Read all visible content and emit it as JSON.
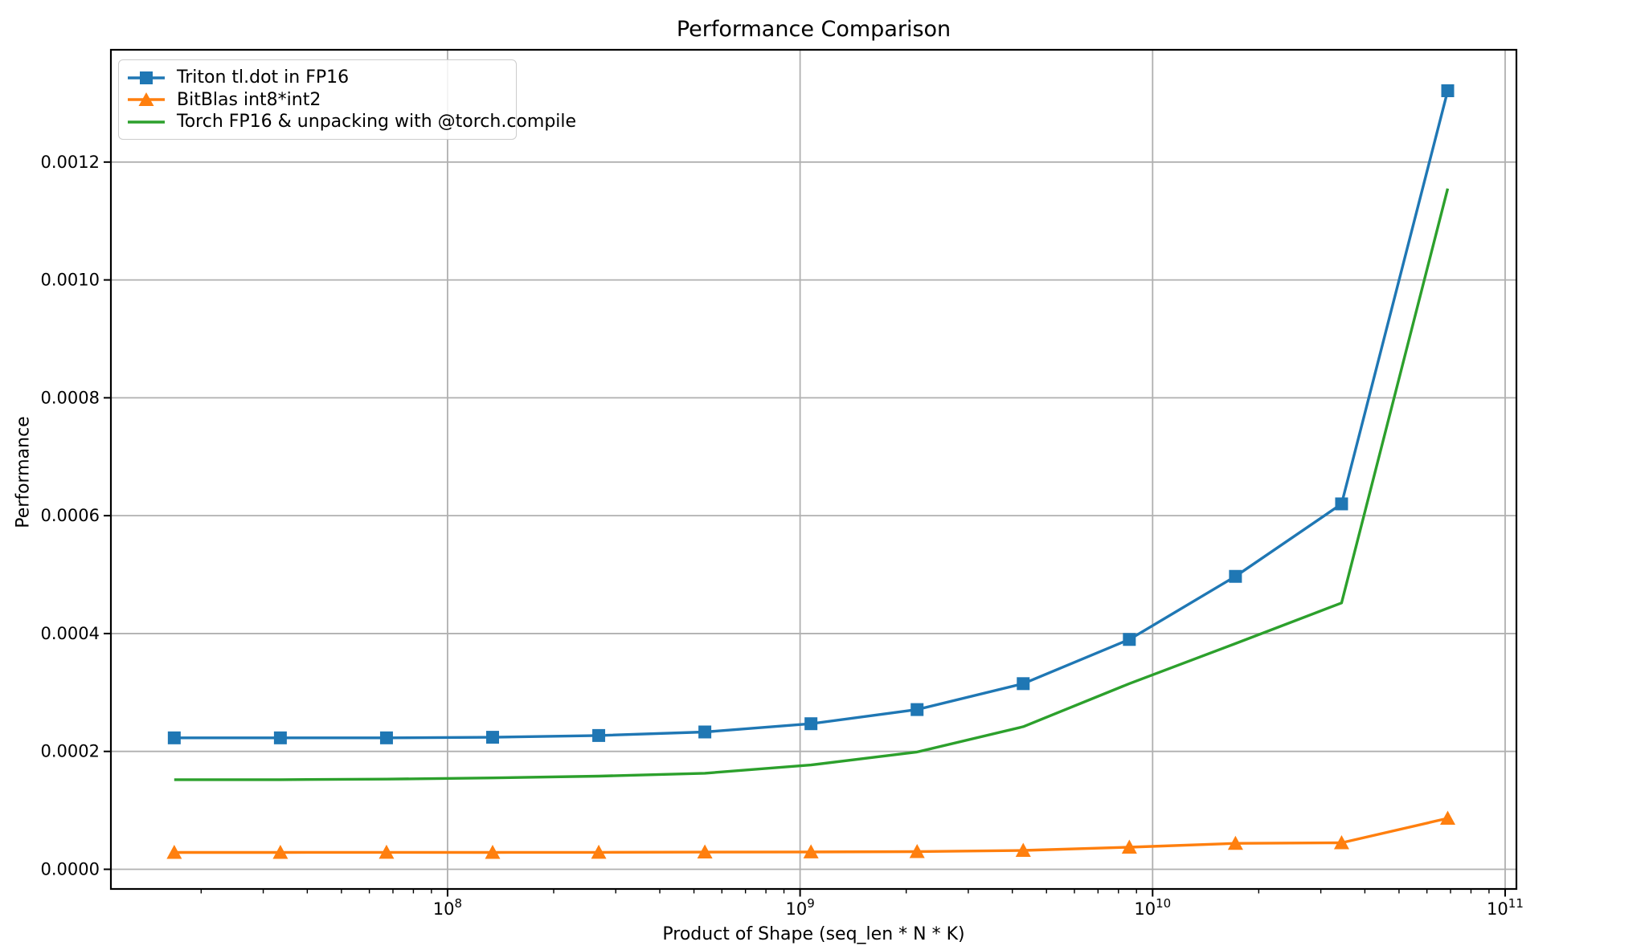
{
  "chart_data": {
    "type": "line",
    "title": "Performance Comparison",
    "xlabel": "Product of Shape (seq_len * N * K)",
    "ylabel": "Performance",
    "x_scale": "log",
    "grid": true,
    "legend_position": "upper left",
    "x": [
      16777216,
      33554432,
      67108864,
      134217728,
      268435456,
      536870912,
      1073741824,
      2147483648,
      4294967296,
      8589934592,
      17179869184,
      34359738368,
      68719476736
    ],
    "series": [
      {
        "name": "Triton tl.dot in FP16",
        "color": "#1f77b4",
        "marker": "square",
        "values": [
          0.000223,
          0.000223,
          0.000223,
          0.000224,
          0.000227,
          0.000233,
          0.000247,
          0.000271,
          0.000315,
          0.00039,
          0.000497,
          0.00062,
          0.001321
        ]
      },
      {
        "name": "BitBlas int8*int2",
        "color": "#ff7f0e",
        "marker": "triangle-up",
        "values": [
          2.86e-05,
          2.86e-05,
          2.88e-05,
          2.86e-05,
          2.88e-05,
          2.92e-05,
          2.94e-05,
          3e-05,
          3.2e-05,
          3.75e-05,
          4.4e-05,
          4.5e-05,
          8.65e-05
        ]
      },
      {
        "name": "Torch FP16 & unpacking with @torch.compile",
        "color": "#2ca02c",
        "marker": "none",
        "values": [
          0.000152,
          0.000152,
          0.000153,
          0.000155,
          0.000158,
          0.000163,
          0.000177,
          0.000199,
          0.000242,
          0.000315,
          0.000383,
          0.000452,
          0.001155
        ]
      }
    ],
    "xtick_exponents": [
      8,
      9,
      10,
      11
    ],
    "yticks": [
      0.0,
      0.0002,
      0.0004,
      0.0006,
      0.0008,
      0.001,
      0.0012
    ],
    "ytick_labels": [
      "0.0000",
      "0.0002",
      "0.0004",
      "0.0006",
      "0.0008",
      "0.0010",
      "0.0012"
    ],
    "xlim_log10": [
      7.045,
      11.032
    ],
    "ylim": [
      -3.34e-05,
      0.0013905
    ],
    "colors": {
      "grid": "#b0b0b0",
      "axis": "#000000",
      "text": "#000000",
      "background": "#ffffff"
    }
  }
}
